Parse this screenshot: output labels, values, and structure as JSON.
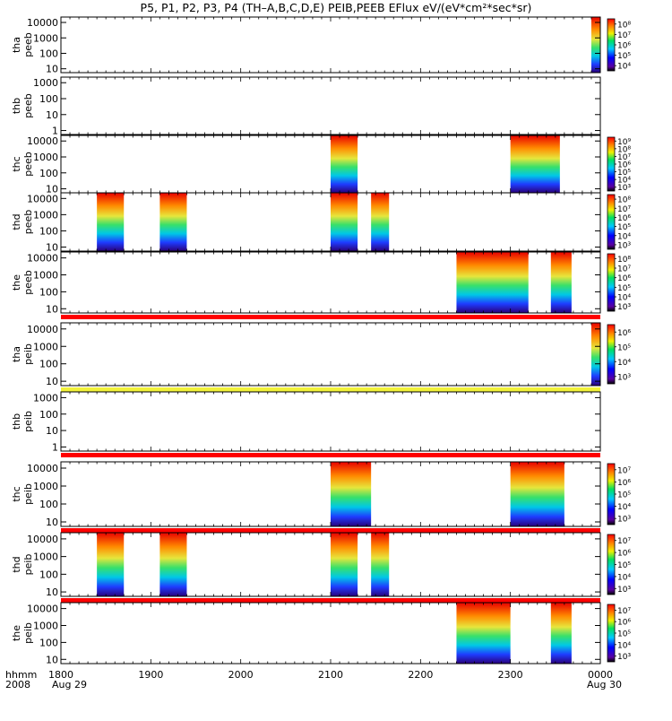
{
  "title": "P5, P1, P2, P3, P4 (TH–A,B,C,D,E) PEIB,PEEB EFlux eV/(eV*cm²*sec*sr)",
  "time_axis": {
    "corner_line1": "hhmm",
    "corner_line2": "2008",
    "ticks": [
      "1800",
      "1900",
      "2000",
      "2100",
      "2200",
      "2300",
      "0000"
    ],
    "start_date": "Aug 29",
    "end_date": "Aug 30"
  },
  "chart_data": {
    "type": "heatmap",
    "title": "P5, P1, P2, P3, P4 (TH–A,B,C,D,E) PEIB,PEEB EFlux eV/(eV*cm²*sec*sr)",
    "x_unit": "hours UT from 2008-08-29 18:00",
    "xlim": [
      0,
      6
    ],
    "panels": [
      {
        "probe": "tha",
        "product": "peeb",
        "ylog": true,
        "yticks": [
          "10",
          "100",
          "1000",
          "10000"
        ],
        "cbar_ticks": [
          "10⁴",
          "10⁵",
          "10⁶",
          "10⁷",
          "10⁸"
        ],
        "data_blocks": [
          {
            "start": 5.9,
            "end": 6.0
          }
        ],
        "bar": "none"
      },
      {
        "probe": "thb",
        "product": "peeb",
        "ylog": true,
        "yticks": [
          "1",
          "10",
          "100",
          "1000"
        ],
        "cbar_ticks": [],
        "data_blocks": [],
        "bar": "none"
      },
      {
        "probe": "thc",
        "product": "peeb",
        "ylog": true,
        "yticks": [
          "10",
          "100",
          "1000",
          "10000"
        ],
        "cbar_ticks": [
          "10³",
          "10⁴",
          "10⁵",
          "10⁶",
          "10⁷",
          "10⁸",
          "10⁹"
        ],
        "data_blocks": [
          {
            "start": 3.0,
            "end": 3.3
          },
          {
            "start": 5.0,
            "end": 5.55
          }
        ],
        "bar": "none"
      },
      {
        "probe": "thd",
        "product": "peeb",
        "ylog": true,
        "yticks": [
          "10",
          "100",
          "1000",
          "10000"
        ],
        "cbar_ticks": [
          "10³",
          "10⁴",
          "10⁵",
          "10⁶",
          "10⁷",
          "10⁸"
        ],
        "data_blocks": [
          {
            "start": 0.4,
            "end": 0.7
          },
          {
            "start": 1.1,
            "end": 1.4
          },
          {
            "start": 3.0,
            "end": 3.3
          },
          {
            "start": 3.45,
            "end": 3.65
          }
        ],
        "bar": "none"
      },
      {
        "probe": "the",
        "product": "peeb",
        "ylog": true,
        "yticks": [
          "10",
          "100",
          "1000",
          "10000"
        ],
        "cbar_ticks": [
          "10³",
          "10⁴",
          "10⁵",
          "10⁶",
          "10⁷",
          "10⁸"
        ],
        "data_blocks": [
          {
            "start": 4.4,
            "end": 5.2
          },
          {
            "start": 5.45,
            "end": 5.68
          }
        ],
        "bar": "red"
      },
      {
        "probe": "tha",
        "product": "peib",
        "ylog": true,
        "yticks": [
          "10",
          "100",
          "1000",
          "10000"
        ],
        "cbar_ticks": [
          "10³",
          "10⁴",
          "10⁵",
          "10⁶"
        ],
        "data_blocks": [
          {
            "start": 5.9,
            "end": 6.0
          }
        ],
        "bar": "yellow"
      },
      {
        "probe": "thb",
        "product": "peib",
        "ylog": true,
        "yticks": [
          "1",
          "10",
          "100",
          "1000"
        ],
        "cbar_ticks": [],
        "data_blocks": [],
        "bar": "red"
      },
      {
        "probe": "thc",
        "product": "peib",
        "ylog": true,
        "yticks": [
          "10",
          "100",
          "1000",
          "10000"
        ],
        "cbar_ticks": [
          "10³",
          "10⁴",
          "10⁵",
          "10⁶",
          "10⁷"
        ],
        "data_blocks": [
          {
            "start": 3.0,
            "end": 3.45
          },
          {
            "start": 5.0,
            "end": 5.6
          }
        ],
        "bar": "red"
      },
      {
        "probe": "thd",
        "product": "peib",
        "ylog": true,
        "yticks": [
          "10",
          "100",
          "1000",
          "10000"
        ],
        "cbar_ticks": [
          "10³",
          "10⁴",
          "10⁵",
          "10⁶",
          "10⁷"
        ],
        "data_blocks": [
          {
            "start": 0.4,
            "end": 0.7
          },
          {
            "start": 1.1,
            "end": 1.4
          },
          {
            "start": 3.0,
            "end": 3.3
          },
          {
            "start": 3.45,
            "end": 3.65
          }
        ],
        "bar": "red"
      },
      {
        "probe": "the",
        "product": "peib",
        "ylog": true,
        "yticks": [
          "10",
          "100",
          "1000",
          "10000"
        ],
        "cbar_ticks": [
          "10³",
          "10⁴",
          "10⁵",
          "10⁶",
          "10⁷"
        ],
        "data_blocks": [
          {
            "start": 4.4,
            "end": 5.0
          },
          {
            "start": 5.45,
            "end": 5.68
          }
        ],
        "bar": "none"
      }
    ]
  }
}
